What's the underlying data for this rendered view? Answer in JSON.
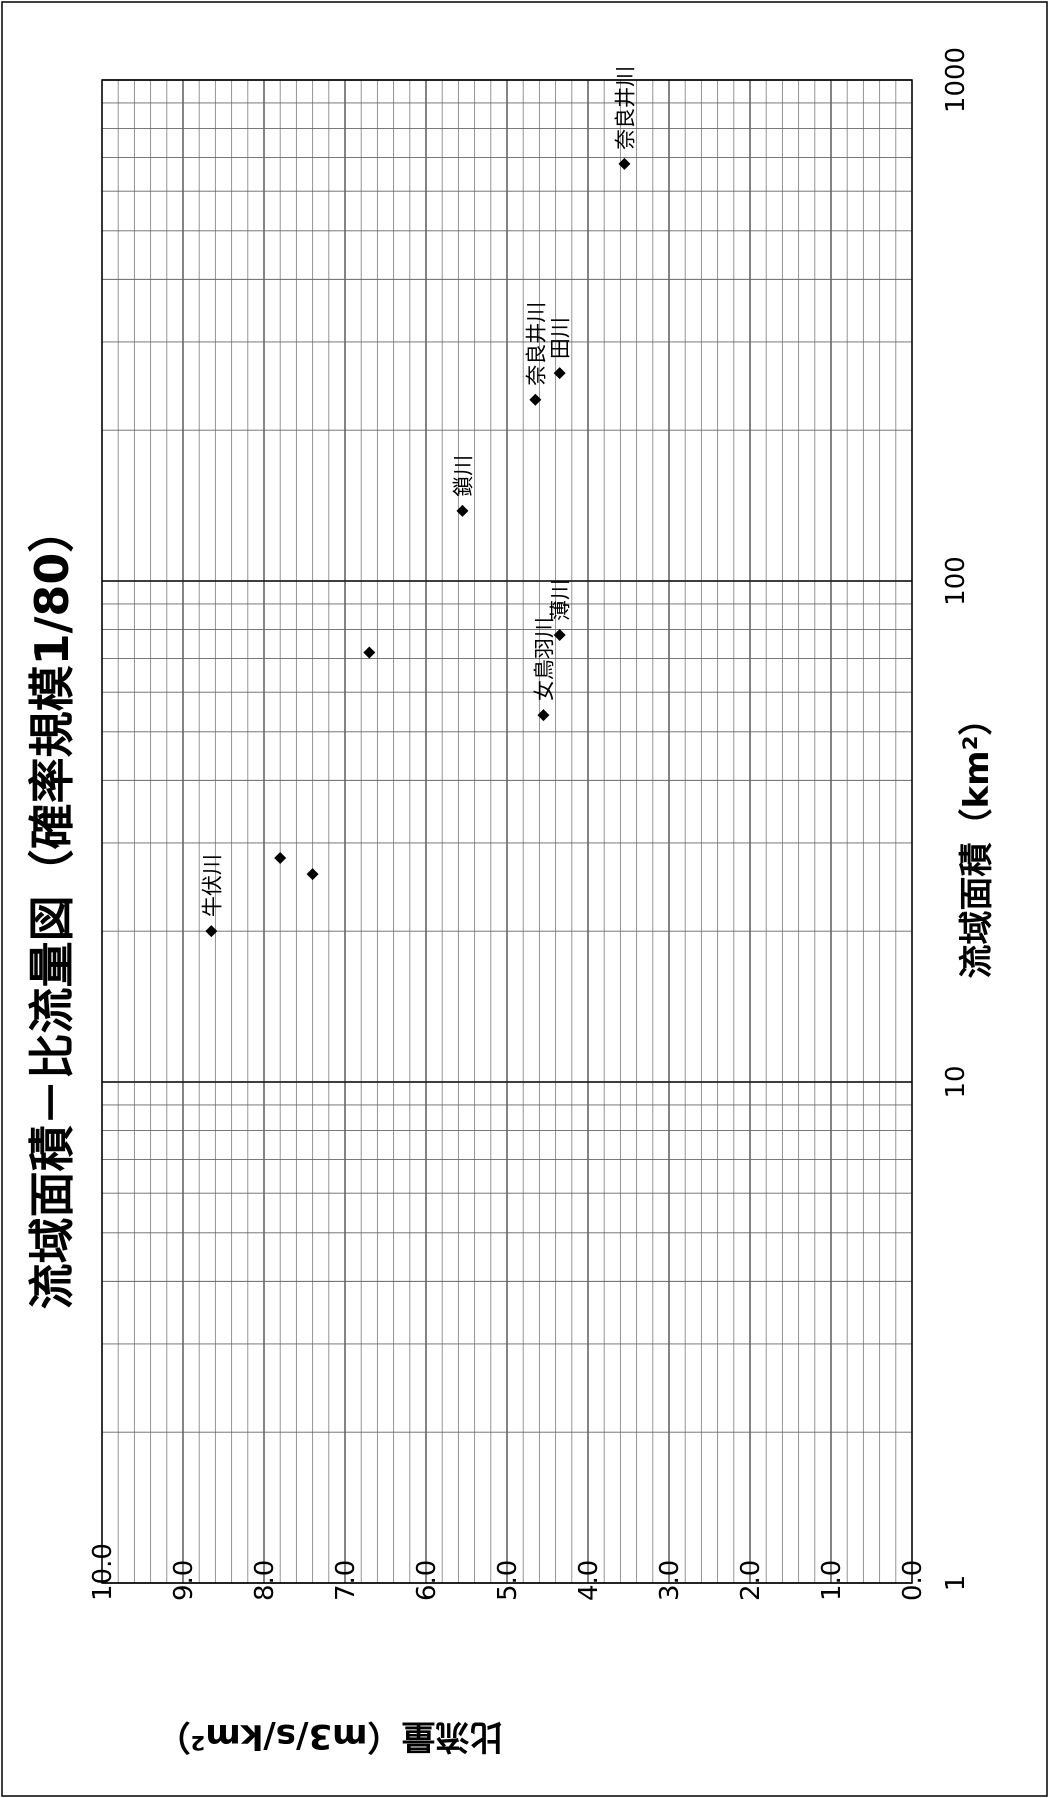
{
  "chart_data": {
    "type": "scatter",
    "title": "流域面積－比流量図（確率規模1/80）",
    "xlabel": "流域面積（km²）",
    "ylabel": "比流量（m3/s/km²）",
    "x_scale": "log",
    "xlim": [
      1,
      1000
    ],
    "ylim": [
      0,
      10
    ],
    "x_ticks": [
      "1",
      "10",
      "100",
      "1000"
    ],
    "y_ticks": [
      "0.0",
      "1.0",
      "2.0",
      "3.0",
      "4.0",
      "5.0",
      "6.0",
      "7.0",
      "8.0",
      "9.0",
      "10.0"
    ],
    "grid": true,
    "marker": "diamond",
    "points": [
      {
        "x": 20,
        "y": 8.65,
        "label": "牛伏川"
      },
      {
        "x": 28,
        "y": 7.8,
        "label": ""
      },
      {
        "x": 26,
        "y": 7.4,
        "label": ""
      },
      {
        "x": 72,
        "y": 6.7,
        "label": ""
      },
      {
        "x": 138,
        "y": 5.55,
        "label": "鎖川"
      },
      {
        "x": 230,
        "y": 4.65,
        "label": "奈良井川"
      },
      {
        "x": 260,
        "y": 4.35,
        "label": "田川"
      },
      {
        "x": 54,
        "y": 4.55,
        "label": "女鳥羽川"
      },
      {
        "x": 78,
        "y": 4.35,
        "label": "薄川"
      },
      {
        "x": 680,
        "y": 3.55,
        "label": "奈良井川"
      }
    ]
  }
}
